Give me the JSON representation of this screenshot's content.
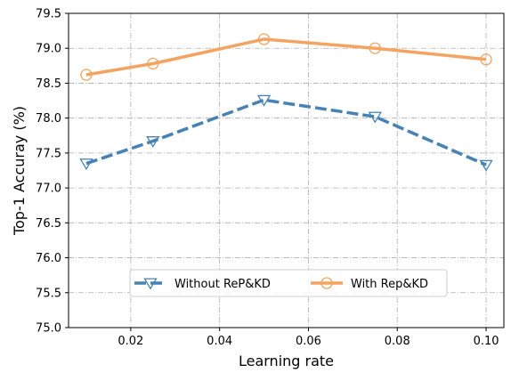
{
  "chart_data": {
    "type": "line",
    "title": "",
    "xlabel": "Learning rate",
    "ylabel": "Top-1 Accuray (%)",
    "xlim": [
      0.006,
      0.104
    ],
    "ylim": [
      75.0,
      79.5
    ],
    "xticks": [
      0.02,
      0.04,
      0.06,
      0.08,
      0.1
    ],
    "xtick_labels": [
      "0.02",
      "0.04",
      "0.06",
      "0.08",
      "0.10"
    ],
    "yticks": [
      75.0,
      75.5,
      76.0,
      76.5,
      77.0,
      77.5,
      78.0,
      78.5,
      79.0,
      79.5
    ],
    "ytick_labels": [
      "75.0",
      "75.5",
      "76.0",
      "76.5",
      "77.0",
      "77.5",
      "78.0",
      "78.5",
      "79.0",
      "79.5"
    ],
    "grid": true,
    "legend_position": "lower center",
    "x": [
      0.01,
      0.025,
      0.05,
      0.075,
      0.1
    ],
    "series": [
      {
        "name": "Without ReP&KD",
        "values": [
          77.35,
          77.67,
          78.26,
          78.02,
          77.33
        ],
        "color": "#4682b4",
        "line_style": "dashed",
        "marker": "triangle-down"
      },
      {
        "name": "With Rep&KD",
        "values": [
          78.62,
          78.78,
          79.13,
          79.0,
          78.84
        ],
        "color": "#f4a460",
        "line_style": "solid",
        "marker": "circle"
      }
    ]
  }
}
